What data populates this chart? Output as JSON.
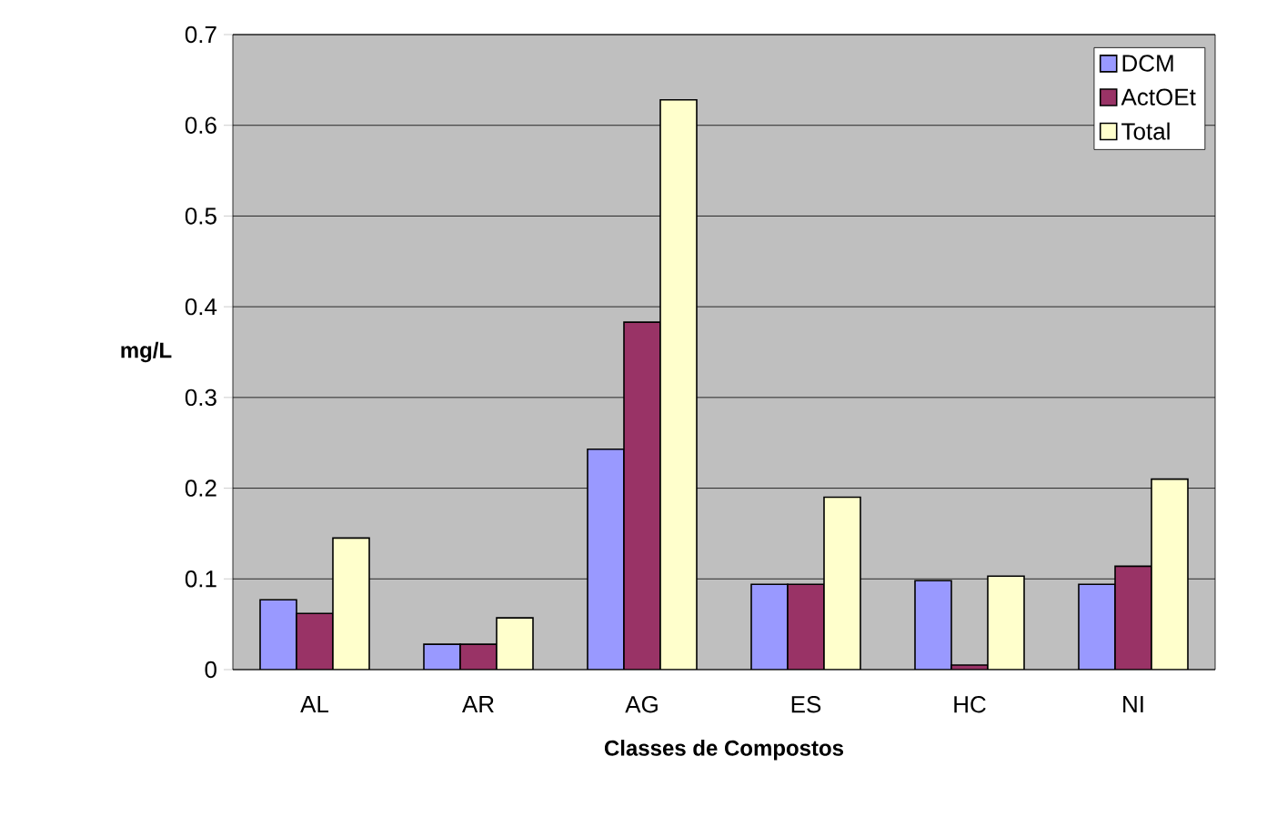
{
  "chart_data": {
    "type": "bar",
    "xlabel": "Classes de Compostos",
    "ylabel": "mg/L",
    "categories": [
      "AL",
      "AR",
      "AG",
      "ES",
      "HC",
      "NI"
    ],
    "series": [
      {
        "name": "DCM",
        "color": "#9999ff",
        "values": [
          0.077,
          0.028,
          0.243,
          0.094,
          0.098,
          0.094
        ]
      },
      {
        "name": "ActOEt",
        "color": "#993366",
        "values": [
          0.062,
          0.028,
          0.383,
          0.094,
          0.005,
          0.114
        ]
      },
      {
        "name": "Total",
        "color": "#ffffcc",
        "values": [
          0.145,
          0.057,
          0.628,
          0.19,
          0.103,
          0.21
        ]
      }
    ],
    "ylim": [
      0,
      0.7
    ],
    "yticks": [
      0,
      0.1,
      0.2,
      0.3,
      0.4,
      0.5,
      0.6,
      0.7
    ],
    "grid": "y",
    "legend": "top right"
  }
}
